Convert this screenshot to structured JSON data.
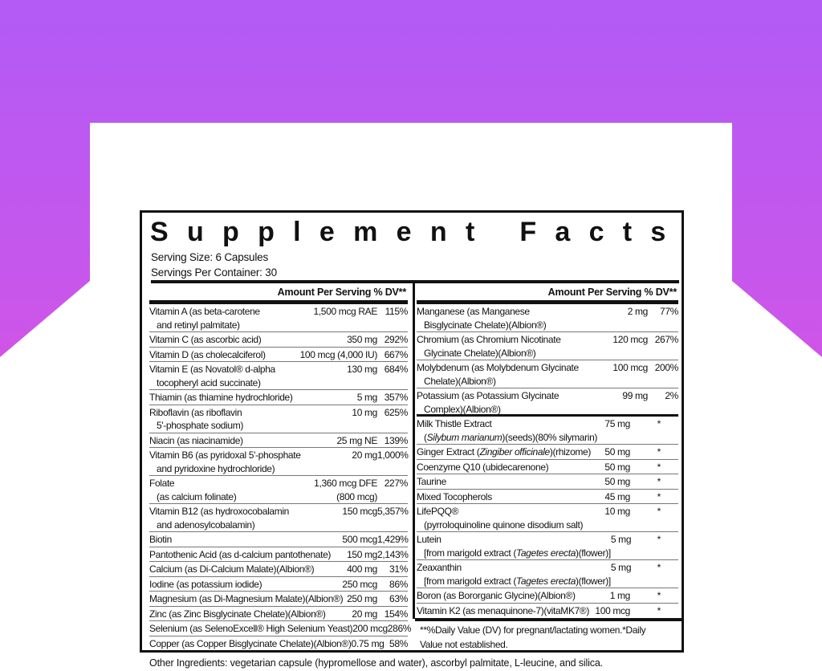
{
  "colors": {
    "gradient_top": "#b25bf5",
    "gradient_bottom": "#f04bd6",
    "panel_border": "#111111"
  },
  "title": "Supplement Facts",
  "serving_size": "Serving Size: 6 Capsules",
  "servings_per_container": "Servings Per Container: 30",
  "header": "Amount Per Serving  % DV**",
  "left_rows": [
    {
      "name": [
        "Vitamin A (as beta-carotene",
        "and retinyl palmitate)"
      ],
      "amount": "1,500 mcg RAE",
      "dv": "115%"
    },
    {
      "name": [
        "Vitamin C (as ascorbic acid)"
      ],
      "amount": "350 mg",
      "dv": "292%"
    },
    {
      "name": [
        "Vitamin D (as cholecalciferol)"
      ],
      "amount": "100 mcg (4,000 IU)",
      "dv": "667%"
    },
    {
      "name": [
        "Vitamin E (as Novatol® d-alpha",
        "tocopheryl acid succinate)"
      ],
      "amount": "130 mg",
      "dv": "684%"
    },
    {
      "name": [
        "Thiamin (as thiamine hydrochloride)"
      ],
      "amount": "5 mg",
      "dv": "357%"
    },
    {
      "name": [
        "Riboflavin (as riboflavin",
        "5'-phosphate sodium)"
      ],
      "amount": "10 mg",
      "dv": "625%"
    },
    {
      "name": [
        "Niacin (as niacinamide)"
      ],
      "amount": "25 mg NE",
      "dv": "139%"
    },
    {
      "name": [
        "Vitamin B6 (as pyridoxal 5'-phosphate",
        "and pyridoxine hydrochloride)"
      ],
      "amount": "20 mg",
      "dv": "1,000%"
    },
    {
      "name": [
        "Folate",
        "(as calcium folinate)"
      ],
      "amount": "1,360 mcg DFE",
      "amount2": "(800 mcg)",
      "dv": "227%"
    },
    {
      "name": [
        "Vitamin B12 (as hydroxocobalamin",
        "and adenosylcobalamin)"
      ],
      "amount": "150 mcg",
      "dv": "5,357%"
    },
    {
      "name": [
        "Biotin"
      ],
      "amount": "500 mcg",
      "dv": "1,429%"
    },
    {
      "name": [
        "Pantothenic Acid (as d-calcium pantothenate)"
      ],
      "amount": "150 mg",
      "dv": "2,143%"
    },
    {
      "name": [
        "Calcium (as Di-Calcium Malate)(Albion®)"
      ],
      "amount": "400 mg",
      "dv": "31%"
    },
    {
      "name": [
        "Iodine (as potassium iodide)"
      ],
      "amount": "250 mcg",
      "dv": "86%"
    },
    {
      "name": [
        "Magnesium (as Di-Magnesium Malate)(Albion®)"
      ],
      "amount": "250 mg",
      "dv": "63%"
    },
    {
      "name": [
        "Zinc (as Zinc Bisglycinate Chelate)(Albion®)"
      ],
      "amount": "20 mg",
      "dv": "154%"
    },
    {
      "name": [
        "Selenium (as SelenoExcell® High Selenium Yeast)"
      ],
      "amount": "200 mcg",
      "dv": "286%"
    },
    {
      "name": [
        "Copper (as Copper Bisglycinate Chelate)(Albion®)"
      ],
      "amount": "0.75 mg",
      "dv": "58%"
    }
  ],
  "right_rows": [
    {
      "name": [
        "Manganese (as Manganese",
        "Bisglycinate Chelate)(Albion®)"
      ],
      "amount": "2 mg",
      "dv": "77%"
    },
    {
      "name": [
        "Chromium (as Chromium Nicotinate",
        "Glycinate Chelate)(Albion®)"
      ],
      "amount": "120 mcg",
      "dv": "267%"
    },
    {
      "name": [
        "Molybdenum (as Molybdenum Glycinate",
        "Chelate)(Albion®)"
      ],
      "amount": "100 mcg",
      "dv": "200%"
    },
    {
      "name": [
        "Potassium (as Potassium Glycinate",
        "Complex)(Albion®)"
      ],
      "amount": "99 mg",
      "dv": "2%",
      "section_end": true
    },
    {
      "name": [
        "Milk Thistle Extract",
        "(_Silybum marianum_)(seeds)(80% silymarin)"
      ],
      "amount": "75 mg",
      "dv": "*"
    },
    {
      "name": [
        "Ginger Extract (_Zingiber officinale_)(rhizome)"
      ],
      "amount": "50 mg",
      "dv": "*"
    },
    {
      "name": [
        "Coenzyme Q10 (ubidecarenone)"
      ],
      "amount": "50 mg",
      "dv": "*"
    },
    {
      "name": [
        "Taurine"
      ],
      "amount": "50 mg",
      "dv": "*"
    },
    {
      "name": [
        "Mixed Tocopherols"
      ],
      "amount": "45 mg",
      "dv": "*"
    },
    {
      "name": [
        "LifePQQ®",
        "(pyrroloquinoline quinone disodium salt)"
      ],
      "amount": "10 mg",
      "dv": "*"
    },
    {
      "name": [
        "Lutein",
        "[from marigold extract (_Tagetes erecta_)(flower)]"
      ],
      "amount": "5 mg",
      "dv": "*"
    },
    {
      "name": [
        "Zeaxanthin",
        "[from marigold extract (_Tagetes erecta_)(flower)]"
      ],
      "amount": "5 mg",
      "dv": "*"
    },
    {
      "name": [
        "Boron (as Bororganic Glycine)(Albion®)"
      ],
      "amount": "1 mg",
      "dv": "*"
    },
    {
      "name": [
        "Vitamin K2 (as menaquinone-7)(vitaMK7®)"
      ],
      "amount": "100 mcg",
      "dv": "*"
    }
  ],
  "footnote": "**%Daily Value (DV) for pregnant/lactating women.*Daily Value not established.",
  "other_ingredients": "Other Ingredients: vegetarian capsule (hypromellose and water), ascorbyl palmitate, L-leucine, and silica."
}
